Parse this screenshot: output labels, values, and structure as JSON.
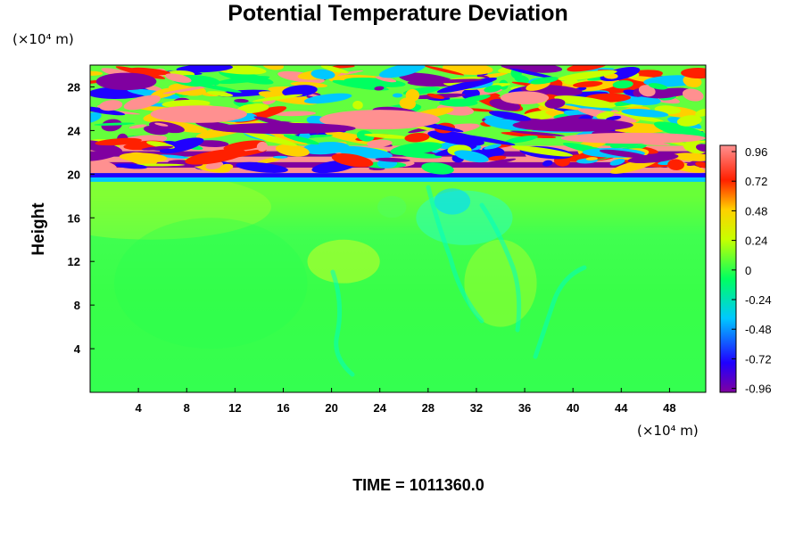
{
  "chart_data": {
    "type": "heatmap",
    "title": "Potential Temperature Deviation",
    "ylabel": "Height",
    "y_unit": "(×10⁴ m)",
    "x_unit": "(×10⁴ m)",
    "x_ticks": [
      4,
      8,
      12,
      16,
      20,
      24,
      28,
      32,
      36,
      40,
      44,
      48
    ],
    "y_ticks": [
      4,
      8,
      12,
      16,
      20,
      24,
      28
    ],
    "xlim": [
      0,
      51
    ],
    "ylim": [
      0,
      30
    ],
    "colorbar": {
      "ticks": [
        "0.96",
        "0.72",
        "0.48",
        "0.24",
        "0",
        "-0.24",
        "-0.48",
        "-0.72",
        "-0.96"
      ],
      "range": [
        -1.0,
        1.0
      ],
      "colors": [
        "#8000a0",
        "#2000ff",
        "#00c8ff",
        "#00ff60",
        "#c8ff00",
        "#ffd000",
        "#ff2000",
        "#ff9090"
      ]
    },
    "annotation": "TIME = 1011360.0"
  }
}
